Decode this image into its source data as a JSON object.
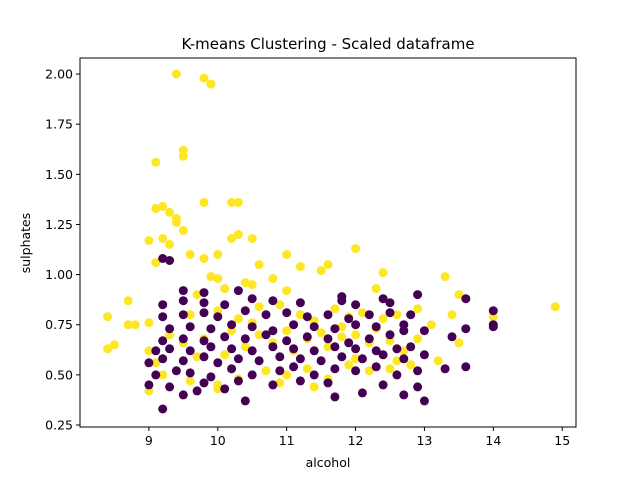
{
  "chart_data": {
    "type": "scatter",
    "title": "K-means Clustering - Scaled dataframe",
    "xlabel": "alcohol",
    "ylabel": "sulphates",
    "xlim": [
      8.0,
      15.2
    ],
    "ylim": [
      0.24,
      2.08
    ],
    "xticks": [
      9,
      10,
      11,
      12,
      13,
      14,
      15
    ],
    "yticks": [
      0.25,
      0.5,
      0.75,
      1.0,
      1.25,
      1.5,
      1.75,
      2.0
    ],
    "xtick_labels": [
      "9",
      "10",
      "11",
      "12",
      "13",
      "14",
      "15"
    ],
    "ytick_labels": [
      "0.25",
      "0.50",
      "0.75",
      "1.00",
      "1.25",
      "1.50",
      "1.75",
      "2.00"
    ],
    "grid": false,
    "legend": "none",
    "colors": {
      "cluster_0": "#440154",
      "cluster_1": "#fde725"
    },
    "series": [
      {
        "cluster": 1,
        "color": "#fde725",
        "points": [
          [
            9.4,
            2.0
          ],
          [
            9.8,
            1.98
          ],
          [
            9.9,
            1.95
          ],
          [
            9.1,
            1.56
          ],
          [
            9.5,
            1.62
          ],
          [
            9.5,
            1.59
          ],
          [
            9.8,
            1.36
          ],
          [
            10.2,
            1.36
          ],
          [
            10.3,
            1.36
          ],
          [
            9.1,
            1.33
          ],
          [
            9.2,
            1.34
          ],
          [
            9.3,
            1.31
          ],
          [
            9.4,
            1.28
          ],
          [
            9.4,
            1.26
          ],
          [
            9.5,
            1.22
          ],
          [
            9.0,
            1.17
          ],
          [
            9.2,
            1.18
          ],
          [
            9.3,
            1.15
          ],
          [
            10.2,
            1.18
          ],
          [
            10.3,
            1.2
          ],
          [
            10.5,
            1.18
          ],
          [
            9.6,
            1.1
          ],
          [
            9.8,
            1.08
          ],
          [
            10.0,
            1.1
          ],
          [
            11.0,
            1.1
          ],
          [
            12.0,
            1.13
          ],
          [
            9.1,
            1.06
          ],
          [
            10.6,
            1.05
          ],
          [
            11.2,
            1.04
          ],
          [
            11.6,
            1.05
          ],
          [
            9.9,
            0.99
          ],
          [
            10.0,
            0.98
          ],
          [
            10.4,
            0.96
          ],
          [
            10.8,
            0.98
          ],
          [
            11.5,
            1.02
          ],
          [
            12.4,
            1.01
          ],
          [
            13.3,
            0.99
          ],
          [
            8.7,
            0.87
          ],
          [
            9.7,
            0.9
          ],
          [
            10.1,
            0.93
          ],
          [
            10.5,
            0.95
          ],
          [
            11.0,
            0.92
          ],
          [
            12.3,
            0.93
          ],
          [
            13.5,
            0.9
          ],
          [
            13.6,
            0.88
          ],
          [
            8.4,
            0.79
          ],
          [
            8.8,
            0.75
          ],
          [
            8.7,
            0.75
          ],
          [
            9.0,
            0.76
          ],
          [
            9.6,
            0.8
          ],
          [
            10.0,
            0.82
          ],
          [
            10.3,
            0.78
          ],
          [
            10.6,
            0.84
          ],
          [
            10.9,
            0.85
          ],
          [
            11.2,
            0.8
          ],
          [
            11.4,
            0.77
          ],
          [
            11.7,
            0.83
          ],
          [
            11.9,
            0.79
          ],
          [
            12.1,
            0.81
          ],
          [
            12.4,
            0.78
          ],
          [
            12.6,
            0.8
          ],
          [
            12.9,
            0.83
          ],
          [
            13.1,
            0.75
          ],
          [
            13.4,
            0.8
          ],
          [
            14.0,
            0.79
          ],
          [
            14.9,
            0.84
          ],
          [
            8.4,
            0.63
          ],
          [
            8.5,
            0.65
          ],
          [
            9.0,
            0.62
          ],
          [
            9.1,
            0.56
          ],
          [
            9.3,
            0.7
          ],
          [
            9.5,
            0.66
          ],
          [
            9.7,
            0.59
          ],
          [
            9.8,
            0.68
          ],
          [
            10.1,
            0.6
          ],
          [
            10.4,
            0.64
          ],
          [
            10.6,
            0.7
          ],
          [
            10.8,
            0.66
          ],
          [
            11.0,
            0.72
          ],
          [
            11.1,
            0.62
          ],
          [
            11.3,
            0.68
          ],
          [
            11.5,
            0.71
          ],
          [
            11.6,
            0.64
          ],
          [
            11.8,
            0.69
          ],
          [
            12.0,
            0.7
          ],
          [
            12.2,
            0.66
          ],
          [
            12.5,
            0.67
          ],
          [
            12.7,
            0.62
          ],
          [
            12.9,
            0.68
          ],
          [
            13.2,
            0.57
          ],
          [
            13.5,
            0.66
          ],
          [
            9.2,
            0.5
          ],
          [
            9.6,
            0.47
          ],
          [
            10.0,
            0.45
          ],
          [
            10.3,
            0.48
          ],
          [
            10.7,
            0.52
          ],
          [
            11.0,
            0.5
          ],
          [
            11.3,
            0.53
          ],
          [
            11.6,
            0.48
          ],
          [
            11.9,
            0.55
          ],
          [
            12.2,
            0.52
          ],
          [
            12.5,
            0.53
          ],
          [
            12.8,
            0.55
          ],
          [
            9.0,
            0.42
          ],
          [
            10.0,
            0.43
          ],
          [
            10.9,
            0.46
          ],
          [
            11.4,
            0.44
          ],
          [
            12.0,
            0.58
          ],
          [
            12.6,
            0.57
          ],
          [
            10.5,
            0.76
          ],
          [
            10.2,
            0.72
          ],
          [
            11.8,
            0.74
          ],
          [
            12.3,
            0.73
          ]
        ]
      },
      {
        "cluster": 0,
        "color": "#440154",
        "points": [
          [
            9.2,
            0.33
          ],
          [
            10.4,
            0.37
          ],
          [
            11.7,
            0.39
          ],
          [
            12.7,
            0.4
          ],
          [
            12.1,
            0.41
          ],
          [
            13.0,
            0.37
          ],
          [
            9.5,
            0.4
          ],
          [
            9.7,
            0.42
          ],
          [
            10.1,
            0.43
          ],
          [
            9.0,
            0.45
          ],
          [
            9.3,
            0.44
          ],
          [
            9.8,
            0.46
          ],
          [
            10.3,
            0.47
          ],
          [
            10.8,
            0.45
          ],
          [
            11.2,
            0.47
          ],
          [
            11.6,
            0.46
          ],
          [
            12.4,
            0.45
          ],
          [
            12.9,
            0.44
          ],
          [
            9.1,
            0.5
          ],
          [
            9.4,
            0.52
          ],
          [
            9.6,
            0.51
          ],
          [
            9.9,
            0.49
          ],
          [
            10.2,
            0.53
          ],
          [
            10.5,
            0.5
          ],
          [
            10.9,
            0.52
          ],
          [
            11.1,
            0.54
          ],
          [
            11.4,
            0.5
          ],
          [
            11.7,
            0.53
          ],
          [
            12.0,
            0.52
          ],
          [
            12.3,
            0.54
          ],
          [
            12.6,
            0.5
          ],
          [
            12.9,
            0.52
          ],
          [
            13.3,
            0.53
          ],
          [
            13.6,
            0.54
          ],
          [
            9.0,
            0.56
          ],
          [
            9.2,
            0.58
          ],
          [
            9.5,
            0.57
          ],
          [
            9.8,
            0.59
          ],
          [
            10.0,
            0.56
          ],
          [
            10.3,
            0.58
          ],
          [
            10.6,
            0.57
          ],
          [
            10.9,
            0.59
          ],
          [
            11.2,
            0.58
          ],
          [
            11.5,
            0.57
          ],
          [
            11.8,
            0.59
          ],
          [
            12.1,
            0.58
          ],
          [
            12.4,
            0.6
          ],
          [
            12.7,
            0.58
          ],
          [
            13.0,
            0.6
          ],
          [
            9.1,
            0.62
          ],
          [
            9.3,
            0.63
          ],
          [
            9.6,
            0.62
          ],
          [
            9.9,
            0.64
          ],
          [
            10.2,
            0.63
          ],
          [
            10.5,
            0.62
          ],
          [
            10.8,
            0.64
          ],
          [
            11.1,
            0.63
          ],
          [
            11.4,
            0.62
          ],
          [
            11.7,
            0.64
          ],
          [
            12.0,
            0.63
          ],
          [
            12.3,
            0.62
          ],
          [
            12.6,
            0.63
          ],
          [
            12.8,
            0.64
          ],
          [
            9.2,
            0.67
          ],
          [
            9.5,
            0.68
          ],
          [
            9.8,
            0.67
          ],
          [
            10.1,
            0.69
          ],
          [
            10.4,
            0.68
          ],
          [
            10.7,
            0.7
          ],
          [
            11.0,
            0.67
          ],
          [
            11.3,
            0.69
          ],
          [
            11.6,
            0.68
          ],
          [
            11.9,
            0.66
          ],
          [
            12.2,
            0.68
          ],
          [
            12.5,
            0.7
          ],
          [
            12.7,
            0.72
          ],
          [
            13.0,
            0.72
          ],
          [
            13.4,
            0.69
          ],
          [
            13.6,
            0.73
          ],
          [
            9.3,
            0.73
          ],
          [
            9.6,
            0.74
          ],
          [
            9.9,
            0.73
          ],
          [
            10.2,
            0.75
          ],
          [
            10.5,
            0.74
          ],
          [
            10.8,
            0.72
          ],
          [
            11.1,
            0.75
          ],
          [
            11.4,
            0.74
          ],
          [
            11.7,
            0.73
          ],
          [
            12.0,
            0.75
          ],
          [
            12.3,
            0.74
          ],
          [
            12.7,
            0.75
          ],
          [
            14.0,
            0.74
          ],
          [
            14.0,
            0.75
          ],
          [
            14.0,
            0.82
          ],
          [
            13.6,
            0.88
          ],
          [
            9.2,
            0.79
          ],
          [
            9.5,
            0.8
          ],
          [
            9.8,
            0.81
          ],
          [
            10.0,
            0.79
          ],
          [
            10.4,
            0.82
          ],
          [
            10.7,
            0.8
          ],
          [
            11.0,
            0.81
          ],
          [
            11.3,
            0.79
          ],
          [
            11.6,
            0.8
          ],
          [
            11.9,
            0.78
          ],
          [
            12.2,
            0.8
          ],
          [
            12.5,
            0.81
          ],
          [
            12.8,
            0.8
          ],
          [
            9.2,
            0.85
          ],
          [
            9.5,
            0.87
          ],
          [
            9.8,
            0.86
          ],
          [
            10.1,
            0.85
          ],
          [
            10.5,
            0.88
          ],
          [
            10.8,
            0.87
          ],
          [
            11.2,
            0.86
          ],
          [
            11.8,
            0.87
          ],
          [
            12.0,
            0.85
          ],
          [
            12.5,
            0.86
          ],
          [
            9.5,
            0.92
          ],
          [
            9.8,
            0.91
          ],
          [
            10.3,
            0.92
          ],
          [
            9.2,
            1.08
          ],
          [
            9.3,
            1.07
          ],
          [
            11.8,
            0.89
          ],
          [
            12.4,
            0.88
          ],
          [
            12.9,
            0.9
          ]
        ]
      }
    ]
  }
}
